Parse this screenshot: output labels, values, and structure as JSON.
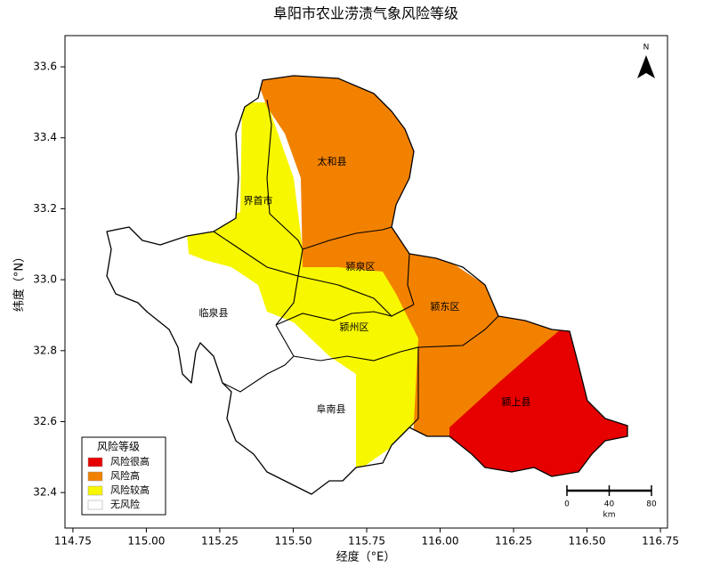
{
  "title": "阜阳市农业涝渍气象风险等级",
  "map": {
    "xlabel": "经度（°E）",
    "ylabel": "纬度（°N）",
    "xlim": [
      114.723,
      116.774
    ],
    "ylim": [
      32.3,
      33.688
    ],
    "xticks": [
      {
        "value": 114.75,
        "label": "114.75"
      },
      {
        "value": 115,
        "label": "115.00"
      },
      {
        "value": 115.25,
        "label": "115.25"
      },
      {
        "value": 115.5,
        "label": "115.50"
      },
      {
        "value": 115.75,
        "label": "115.75"
      },
      {
        "value": 116,
        "label": "116.00"
      },
      {
        "value": 116.25,
        "label": "116.25"
      },
      {
        "value": 116.5,
        "label": "116.50"
      },
      {
        "value": 116.75,
        "label": "116.75"
      }
    ],
    "yticks": [
      32.4,
      32.6,
      32.8,
      {
        "value": 33,
        "label": "33.0"
      },
      33.2,
      33.4,
      33.6
    ],
    "regions": [
      "太和县",
      "界首市",
      "颍泉区",
      "颍东区",
      "临泉县",
      "颍州区",
      "阜南县",
      "颍上县"
    ],
    "legend": {
      "title": "风险等级",
      "entries": [
        {
          "name": "风险很高",
          "color": "#e60000"
        },
        {
          "name": "风险高",
          "color": "#f28100"
        },
        {
          "name": "风险较高",
          "color": "#f7f700"
        },
        {
          "name": "无风险",
          "color": "#ffffff"
        }
      ]
    },
    "north": "N",
    "scale_bar": {
      "labels": [
        "0",
        "40",
        "80"
      ],
      "unit": "km"
    }
  }
}
